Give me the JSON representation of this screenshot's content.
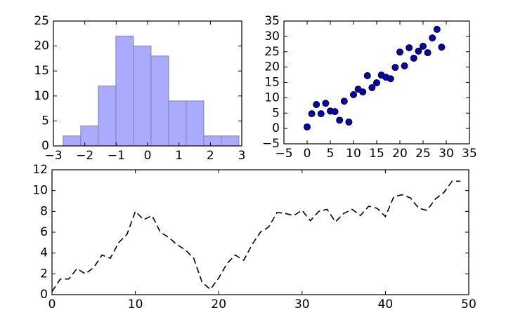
{
  "chart_data": [
    {
      "type": "histogram",
      "bins": [
        -2.69,
        -2.13,
        -1.57,
        -1.01,
        -0.45,
        0.11,
        0.67,
        1.23,
        1.79,
        2.35,
        2.91
      ],
      "values": [
        2,
        4,
        12,
        22,
        20,
        18,
        9,
        9,
        2,
        2
      ],
      "color": "#aaaaff",
      "xlim": [
        -3,
        3
      ],
      "xticks": [
        -3,
        -2,
        -1,
        0,
        1,
        2,
        3
      ],
      "ylim": [
        0,
        25
      ],
      "yticks": [
        0,
        5,
        10,
        15,
        20,
        25
      ]
    },
    {
      "type": "scatter",
      "x": [
        0,
        1,
        2,
        3,
        4,
        5,
        6,
        7,
        8,
        9,
        10,
        11,
        12,
        13,
        14,
        15,
        16,
        17,
        18,
        19,
        20,
        21,
        22,
        23,
        24,
        25,
        26,
        27,
        28,
        29
      ],
      "values": [
        0.5,
        4.8,
        7.8,
        4.8,
        8.2,
        5.7,
        5.5,
        2.7,
        8.9,
        2.1,
        11,
        12.8,
        11.9,
        17.2,
        13.3,
        14.9,
        17.4,
        16.7,
        16.2,
        19.9,
        24.9,
        20.4,
        26.3,
        22.9,
        25.2,
        26.8,
        24.7,
        29.5,
        32.3,
        26.5
      ],
      "color": "#0000bf",
      "xlim": [
        -5,
        35
      ],
      "xticks": [
        -5,
        0,
        5,
        10,
        15,
        20,
        25,
        30,
        35
      ],
      "ylim": [
        -5,
        35
      ],
      "yticks": [
        -5,
        0,
        5,
        10,
        15,
        20,
        25,
        30,
        35
      ]
    },
    {
      "type": "line",
      "x": [
        0,
        1,
        2,
        3,
        4,
        5,
        6,
        7,
        8,
        9,
        10,
        11,
        12,
        13,
        14,
        15,
        16,
        17,
        18,
        19,
        20,
        21,
        22,
        23,
        24,
        25,
        26,
        27,
        28,
        29,
        30,
        31,
        32,
        33,
        34,
        35,
        36,
        37,
        38,
        39,
        40,
        41,
        42,
        43,
        44,
        45,
        46,
        47,
        48,
        49
      ],
      "values": [
        0.3,
        1.5,
        1.5,
        2.5,
        2.0,
        2.6,
        3.8,
        3.5,
        5.0,
        5.8,
        8.0,
        7.2,
        7.6,
        6.0,
        5.5,
        4.8,
        4.3,
        3.5,
        1.2,
        0.5,
        1.6,
        3.0,
        3.8,
        3.3,
        4.8,
        6.0,
        6.5,
        7.9,
        7.8,
        7.6,
        8.1,
        7.1,
        8.0,
        8.2,
        7.0,
        7.8,
        8.2,
        7.6,
        8.5,
        8.3,
        7.5,
        9.4,
        9.6,
        9.3,
        8.3,
        8.1,
        9.2,
        9.8,
        10.9,
        10.9
      ],
      "color": "#000000",
      "dashed": true,
      "xlim": [
        0,
        50
      ],
      "xticks": [
        0,
        10,
        20,
        30,
        40,
        50
      ],
      "ylim": [
        0,
        12
      ],
      "yticks": [
        0,
        2,
        4,
        6,
        8,
        10,
        12
      ]
    }
  ]
}
